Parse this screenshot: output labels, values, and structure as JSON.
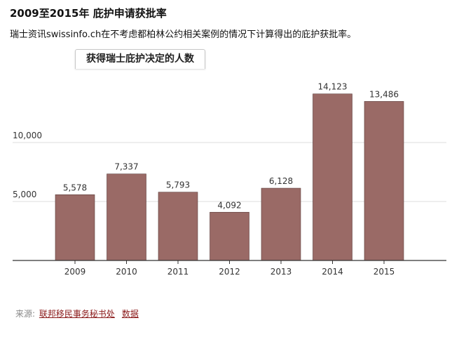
{
  "title": "2009至2015年 庇护申请获批率",
  "subtitle": "瑞士资讯swissinfo.ch在不考虑都柏林公约相关案例的情况下计算得出的庇护获批率。",
  "tab_label": "获得瑞士庇护决定的人数",
  "source": {
    "label": "来源:",
    "link1": "联邦移民事务秘书处",
    "link2": "数据"
  },
  "colors": {
    "bar": "#9a6a66",
    "grid": "#dddddd",
    "axis": "#333333"
  },
  "chart_data": {
    "type": "bar",
    "categories": [
      "2009",
      "2010",
      "2011",
      "2012",
      "2013",
      "2014",
      "2015"
    ],
    "values": [
      5578,
      7337,
      5793,
      4092,
      6128,
      14123,
      13486
    ],
    "value_labels": [
      "5,578",
      "7,337",
      "5,793",
      "4,092",
      "6,128",
      "14,123",
      "13,486"
    ],
    "title": "获得瑞士庇护决定的人数",
    "xlabel": "",
    "ylabel": "",
    "yticks": [
      5000,
      10000
    ],
    "ytick_labels": [
      "5,000",
      "10,000"
    ],
    "ylim": [
      0,
      15000
    ],
    "grid": true
  }
}
